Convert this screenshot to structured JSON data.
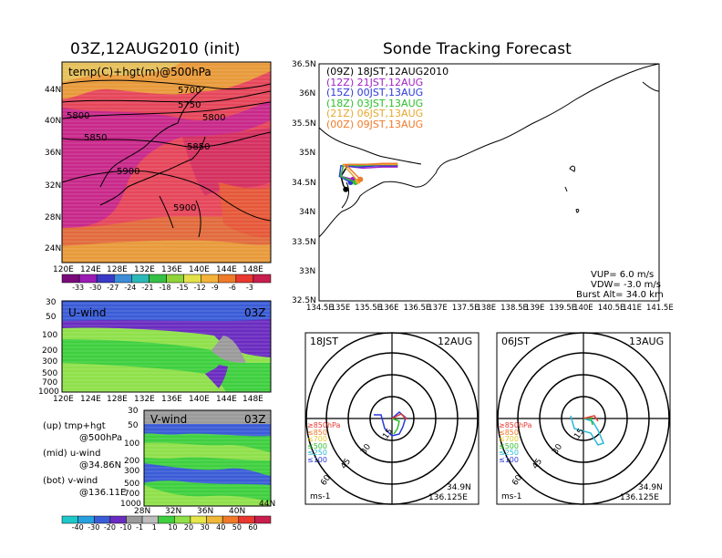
{
  "left": {
    "title": "03Z,12AUG2010 (init)",
    "map_label": "temp(C)+hgt(m)@500hPa",
    "contours": [
      "5700",
      "5750",
      "5800",
      "5800",
      "5850",
      "5850",
      "5900",
      "5900"
    ],
    "map_lat_ticks": [
      "44N",
      "40N",
      "36N",
      "32N",
      "28N",
      "24N"
    ],
    "lon_ticks": [
      "120E",
      "124E",
      "128E",
      "132E",
      "136E",
      "140E",
      "144E",
      "148E"
    ],
    "temp_colorbar": [
      "-33",
      "-30",
      "-27",
      "-24",
      "-21",
      "-18",
      "-15",
      "-12",
      "-9",
      "-6",
      "-3"
    ],
    "temp_colors": [
      "#7a0a7a",
      "#9b1bb5",
      "#3a3ac8",
      "#3c8cd8",
      "#2cb8b8",
      "#35c046",
      "#8fd438",
      "#e4e24a",
      "#f3b23a",
      "#ef7a2a",
      "#e8382f",
      "#c81e4d"
    ],
    "u_wind": {
      "label": "U-wind",
      "time": "03Z"
    },
    "v_wind": {
      "label": "V-wind",
      "time": "03Z"
    },
    "pressure_ticks": [
      "30",
      "50",
      "100",
      "200",
      "300",
      "500",
      "700",
      "1000"
    ],
    "lat_ticks": [
      "28N",
      "32N",
      "36N",
      "40N",
      "44N"
    ],
    "wind_colorbar": [
      "-40",
      "-30",
      "-20",
      "-10",
      "-1",
      "1",
      "10",
      "20",
      "30",
      "40",
      "50",
      "60"
    ],
    "wind_colors": [
      "#1ec8c8",
      "#27a0e0",
      "#3a5cd6",
      "#6a2cc0",
      "#9a9a9a",
      "#bdbdbd",
      "#3fcf3f",
      "#8fe04a",
      "#e6e64a",
      "#f0b83a",
      "#f07a2a",
      "#e8382f",
      "#c81e4d"
    ],
    "notes": [
      {
        "a": "(up)  tmp+hgt",
        "b": "@500hPa"
      },
      {
        "a": "(mid)  u-wind",
        "b": "@34.86N"
      },
      {
        "a": "(bot)  v-wind",
        "b": "@136.11E"
      }
    ]
  },
  "right": {
    "title": "Sonde Tracking Forecast",
    "legend": [
      {
        "text": "(09Z)  18JST,12AUG2010",
        "color": "#000000"
      },
      {
        "text": "(12Z)  21JST,12AUG",
        "color": "#a21fc8"
      },
      {
        "text": "(15Z)  00JST,13AUG",
        "color": "#2a3ad8"
      },
      {
        "text": "(18Z)  03JST,13AUG",
        "color": "#2dbf2d"
      },
      {
        "text": "(21Z)  06JST,13AUG",
        "color": "#e6a830"
      },
      {
        "text": "(00Z)  09JST,13AUG",
        "color": "#f07a2a"
      }
    ],
    "lat_ticks": [
      "36.5N",
      "36N",
      "35.5N",
      "35N",
      "34.5N",
      "34N",
      "33.5N",
      "33N",
      "32.5N"
    ],
    "lon_ticks": [
      "134.5E",
      "135E",
      "135.5E",
      "136E",
      "136.5E",
      "137E",
      "137.5E",
      "138E",
      "138.5E",
      "139E",
      "139.5E",
      "140E",
      "140.5E",
      "141E",
      "141.5E"
    ],
    "params": [
      "VUP=  6.0  m/s",
      "VDW=  -3.0  m/s",
      "Burst Alt=  34.0  km"
    ],
    "hodo1": {
      "left": "18JST",
      "right": "12AUG",
      "unit": "ms-1",
      "coord1": "34.9N",
      "coord2": "136.125E"
    },
    "hodo2": {
      "left": "06JST",
      "right": "13AUG",
      "unit": "ms-1",
      "coord1": "34.9N",
      "coord2": "136.125E"
    },
    "hodo_rings": [
      "15",
      "30",
      "45",
      "60"
    ],
    "hodo_levels": [
      {
        "text": "≥850hPa",
        "color": "#e8382f"
      },
      {
        "text": "≤850",
        "color": "#f07a2a"
      },
      {
        "text": "≤700",
        "color": "#e6c82a"
      },
      {
        "text": "≤500",
        "color": "#2dbf2d"
      },
      {
        "text": "≤250",
        "color": "#2cb8d8"
      },
      {
        "text": "≤100",
        "color": "#2a3ad8"
      }
    ]
  },
  "chart_data": [
    {
      "type": "heatmap",
      "title": "03Z,12AUG2010 (init)",
      "label": "temp(C)+hgt(m)@500hPa",
      "x_ticks": [
        "120E",
        "124E",
        "128E",
        "132E",
        "136E",
        "140E",
        "144E",
        "148E"
      ],
      "y_ticks": [
        "44N",
        "40N",
        "36N",
        "32N",
        "28N",
        "24N"
      ],
      "contour_levels_m": [
        5700,
        5750,
        5800,
        5850,
        5900
      ],
      "colorbar_c": [
        -33,
        -30,
        -27,
        -24,
        -21,
        -18,
        -15,
        -12,
        -9,
        -6,
        -3
      ]
    },
    {
      "type": "heatmap",
      "label": "U-wind",
      "time": "03Z",
      "x_ticks": [
        "120E",
        "124E",
        "128E",
        "132E",
        "136E",
        "140E",
        "144E",
        "148E"
      ],
      "y_ticks_hpa": [
        30,
        50,
        100,
        200,
        300,
        500,
        700,
        1000
      ]
    },
    {
      "type": "heatmap",
      "label": "V-wind",
      "time": "03Z",
      "x_ticks": [
        "28N",
        "32N",
        "36N",
        "40N",
        "44N"
      ],
      "y_ticks_hpa": [
        30,
        50,
        100,
        200,
        300,
        500,
        700,
        1000
      ],
      "colorbar_ms": [
        -40,
        -30,
        -20,
        -10,
        -1,
        1,
        10,
        20,
        30,
        40,
        50,
        60
      ]
    },
    {
      "type": "line",
      "title": "Sonde Tracking Forecast",
      "x_range": [
        134.5,
        141.5
      ],
      "y_range": [
        32.5,
        36.5
      ],
      "series": [
        {
          "name": "(09Z)  18JST,12AUG2010",
          "x": [
            136.12,
            135.9,
            135.5,
            135.1,
            134.95,
            135.0,
            135.05
          ],
          "y": [
            34.78,
            34.78,
            34.8,
            34.8,
            34.6,
            34.45,
            34.38
          ]
        },
        {
          "name": "(12Z)  21JST,12AUG",
          "x": [
            136.12,
            135.8,
            135.4,
            135.0,
            134.95,
            135.2
          ],
          "y": [
            34.76,
            34.76,
            34.74,
            34.78,
            34.6,
            34.55
          ]
        },
        {
          "name": "(15Z)  00JST,13AUG",
          "x": [
            136.12,
            135.7,
            135.3,
            134.95,
            134.92,
            135.15
          ],
          "y": [
            34.78,
            34.78,
            34.76,
            34.78,
            34.6,
            34.5
          ]
        },
        {
          "name": "(18Z)  03JST,13AUG",
          "x": [
            136.12,
            135.7,
            135.3,
            135.0,
            134.95,
            135.25
          ],
          "y": [
            34.8,
            34.8,
            34.78,
            34.8,
            34.6,
            34.5
          ]
        },
        {
          "name": "(21Z)  06JST,13AUG",
          "x": [
            136.12,
            135.8,
            135.4,
            135.0,
            135.3
          ],
          "y": [
            34.8,
            34.8,
            34.8,
            34.8,
            34.52
          ]
        },
        {
          "name": "(00Z)  09JST,13AUG",
          "x": [
            136.12,
            135.8,
            135.4,
            135.05,
            135.35
          ],
          "y": [
            34.82,
            34.82,
            34.8,
            34.8,
            34.55
          ]
        }
      ],
      "vup_ms": 6.0,
      "vdw_ms": -3.0,
      "burst_alt_km": 34.0
    }
  ]
}
